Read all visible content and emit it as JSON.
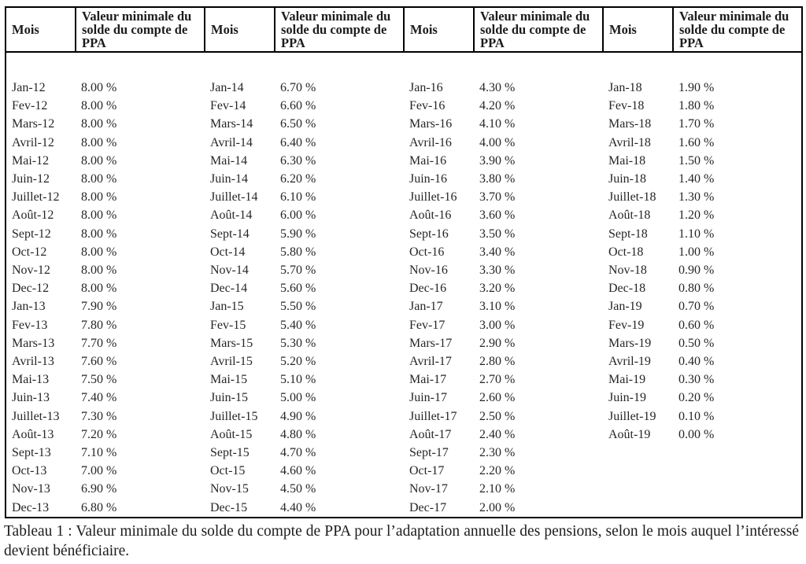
{
  "table": {
    "header": {
      "month_label": "Mois",
      "value_label": "Valeur minimale du solde du compte de PPA"
    },
    "row_count": 24,
    "groups": [
      {
        "rows": [
          {
            "month": "Jan-12",
            "value": "8.00 %"
          },
          {
            "month": "Fev-12",
            "value": "8.00 %"
          },
          {
            "month": "Mars-12",
            "value": "8.00 %"
          },
          {
            "month": "Avril-12",
            "value": "8.00 %"
          },
          {
            "month": "Mai-12",
            "value": "8.00 %"
          },
          {
            "month": "Juin-12",
            "value": "8.00 %"
          },
          {
            "month": "Juillet-12",
            "value": "8.00 %"
          },
          {
            "month": "Août-12",
            "value": "8.00 %"
          },
          {
            "month": "Sept-12",
            "value": "8.00 %"
          },
          {
            "month": "Oct-12",
            "value": "8.00 %"
          },
          {
            "month": "Nov-12",
            "value": "8.00 %"
          },
          {
            "month": "Dec-12",
            "value": "8.00 %"
          },
          {
            "month": "Jan-13",
            "value": "7.90 %"
          },
          {
            "month": "Fev-13",
            "value": "7.80 %"
          },
          {
            "month": "Mars-13",
            "value": "7.70 %"
          },
          {
            "month": "Avril-13",
            "value": "7.60 %"
          },
          {
            "month": "Mai-13",
            "value": "7.50 %"
          },
          {
            "month": "Juin-13",
            "value": "7.40 %"
          },
          {
            "month": "Juillet-13",
            "value": "7.30 %"
          },
          {
            "month": "Août-13",
            "value": "7.20 %"
          },
          {
            "month": "Sept-13",
            "value": "7.10 %"
          },
          {
            "month": "Oct-13",
            "value": "7.00 %"
          },
          {
            "month": "Nov-13",
            "value": "6.90 %"
          },
          {
            "month": "Dec-13",
            "value": "6.80 %"
          }
        ]
      },
      {
        "rows": [
          {
            "month": "Jan-14",
            "value": "6.70 %"
          },
          {
            "month": "Fev-14",
            "value": "6.60 %"
          },
          {
            "month": "Mars-14",
            "value": "6.50 %"
          },
          {
            "month": "Avril-14",
            "value": "6.40 %"
          },
          {
            "month": "Mai-14",
            "value": "6.30 %"
          },
          {
            "month": "Juin-14",
            "value": "6.20 %"
          },
          {
            "month": "Juillet-14",
            "value": "6.10 %"
          },
          {
            "month": "Août-14",
            "value": "6.00 %"
          },
          {
            "month": "Sept-14",
            "value": "5.90 %"
          },
          {
            "month": "Oct-14",
            "value": "5.80 %"
          },
          {
            "month": "Nov-14",
            "value": "5.70 %"
          },
          {
            "month": "Dec-14",
            "value": "5.60 %"
          },
          {
            "month": "Jan-15",
            "value": "5.50 %"
          },
          {
            "month": "Fev-15",
            "value": "5.40 %"
          },
          {
            "month": "Mars-15",
            "value": "5.30 %"
          },
          {
            "month": "Avril-15",
            "value": "5.20 %"
          },
          {
            "month": "Mai-15",
            "value": "5.10 %"
          },
          {
            "month": "Juin-15",
            "value": "5.00 %"
          },
          {
            "month": "Juillet-15",
            "value": "4.90 %"
          },
          {
            "month": "Août-15",
            "value": "4.80 %"
          },
          {
            "month": "Sept-15",
            "value": "4.70 %"
          },
          {
            "month": "Oct-15",
            "value": "4.60 %"
          },
          {
            "month": "Nov-15",
            "value": "4.50 %"
          },
          {
            "month": "Dec-15",
            "value": "4.40 %"
          }
        ]
      },
      {
        "rows": [
          {
            "month": "Jan-16",
            "value": "4.30 %"
          },
          {
            "month": "Fev-16",
            "value": "4.20 %"
          },
          {
            "month": "Mars-16",
            "value": "4.10 %"
          },
          {
            "month": "Avril-16",
            "value": "4.00 %"
          },
          {
            "month": "Mai-16",
            "value": "3.90 %"
          },
          {
            "month": "Juin-16",
            "value": "3.80 %"
          },
          {
            "month": "Juillet-16",
            "value": "3.70 %"
          },
          {
            "month": "Août-16",
            "value": "3.60 %"
          },
          {
            "month": "Sept-16",
            "value": "3.50 %"
          },
          {
            "month": "Oct-16",
            "value": "3.40 %"
          },
          {
            "month": "Nov-16",
            "value": "3.30 %"
          },
          {
            "month": "Dec-16",
            "value": "3.20 %"
          },
          {
            "month": "Jan-17",
            "value": "3.10 %"
          },
          {
            "month": "Fev-17",
            "value": "3.00 %"
          },
          {
            "month": "Mars-17",
            "value": "2.90 %"
          },
          {
            "month": "Avril-17",
            "value": "2.80 %"
          },
          {
            "month": "Mai-17",
            "value": "2.70 %"
          },
          {
            "month": "Juin-17",
            "value": "2.60 %"
          },
          {
            "month": "Juillet-17",
            "value": "2.50 %"
          },
          {
            "month": "Août-17",
            "value": "2.40 %"
          },
          {
            "month": "Sept-17",
            "value": "2.30 %"
          },
          {
            "month": "Oct-17",
            "value": "2.20 %"
          },
          {
            "month": "Nov-17",
            "value": "2.10 %"
          },
          {
            "month": "Dec-17",
            "value": "2.00 %"
          }
        ]
      },
      {
        "rows": [
          {
            "month": "Jan-18",
            "value": "1.90 %"
          },
          {
            "month": "Fev-18",
            "value": "1.80 %"
          },
          {
            "month": "Mars-18",
            "value": "1.70 %"
          },
          {
            "month": "Avril-18",
            "value": "1.60 %"
          },
          {
            "month": "Mai-18",
            "value": "1.50 %"
          },
          {
            "month": "Juin-18",
            "value": "1.40 %"
          },
          {
            "month": "Juillet-18",
            "value": "1.30 %"
          },
          {
            "month": "Août-18",
            "value": "1.20 %"
          },
          {
            "month": "Sept-18",
            "value": "1.10 %"
          },
          {
            "month": "Oct-18",
            "value": "1.00 %"
          },
          {
            "month": "Nov-18",
            "value": "0.90 %"
          },
          {
            "month": "Dec-18",
            "value": "0.80 %"
          },
          {
            "month": "Jan-19",
            "value": "0.70 %"
          },
          {
            "month": "Fev-19",
            "value": "0.60 %"
          },
          {
            "month": "Mars-19",
            "value": "0.50 %"
          },
          {
            "month": "Avril-19",
            "value": "0.40 %"
          },
          {
            "month": "Mai-19",
            "value": "0.30 %"
          },
          {
            "month": "Juin-19",
            "value": "0.20 %"
          },
          {
            "month": "Juillet-19",
            "value": "0.10 %"
          },
          {
            "month": "Août-19",
            "value": "0.00 %"
          }
        ]
      }
    ]
  },
  "caption": "Tableau 1 : Valeur minimale du solde du compte de PPA pour l’adaptation annuelle des pensions, selon le mois auquel l’intéressé devient bénéficiaire."
}
